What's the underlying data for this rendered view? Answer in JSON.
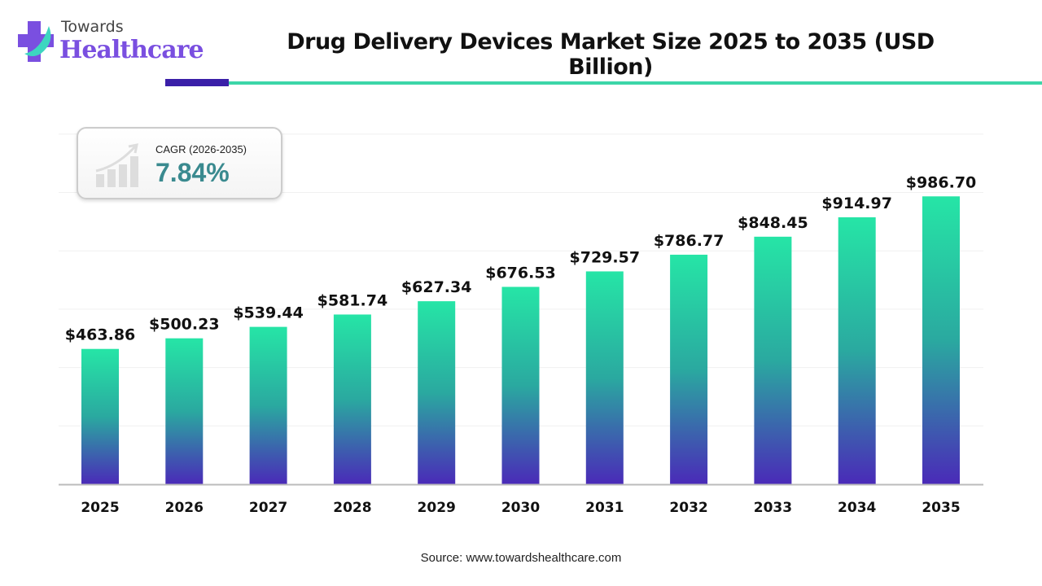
{
  "logo": {
    "line1": "Towards",
    "line2": "Healthcare"
  },
  "cagr": {
    "label": "CAGR (2026-2035)",
    "value": "7.84%"
  },
  "source": "Source: www.towardshealthcare.com",
  "colors": {
    "bar_top": "#26e5a6",
    "bar_bottom": "#4a2ab8",
    "accent_dark": "#3a1fa8",
    "accent_light": "#3dd6a8"
  },
  "chart_data": {
    "type": "bar",
    "title": "Drug Delivery Devices Market Size 2025 to 2035 (USD Billion)",
    "categories": [
      "2025",
      "2026",
      "2027",
      "2028",
      "2029",
      "2030",
      "2031",
      "2032",
      "2033",
      "2034",
      "2035"
    ],
    "values": [
      463.86,
      500.23,
      539.44,
      581.74,
      627.34,
      676.53,
      729.57,
      786.77,
      848.45,
      914.97,
      986.7
    ],
    "labels": [
      "$463.86",
      "$500.23",
      "$539.44",
      "$581.74",
      "$627.34",
      "$676.53",
      "$729.57",
      "$786.77",
      "$848.45",
      "$914.97",
      "$986.70"
    ],
    "xlabel": "",
    "ylabel": "USD Billion",
    "ylim": [
      0,
      1200
    ],
    "grid": true,
    "legend": "none"
  }
}
